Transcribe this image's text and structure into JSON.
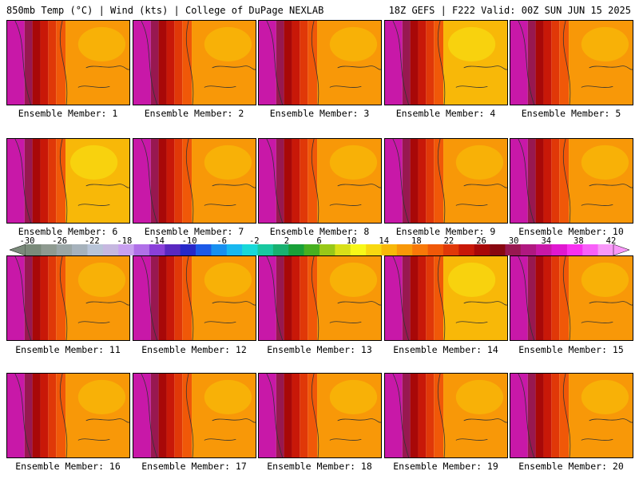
{
  "header": {
    "left_title": "850mb Temp (°C) | Wind (kts) | College of DuPage NEXLAB",
    "right_title": "18Z GEFS | F222 Valid: 00Z SUN JUN 15 2025"
  },
  "colorbar": {
    "tick_labels": [
      "-30",
      "-26",
      "-22",
      "-18",
      "-14",
      "-10",
      "-6",
      "-2",
      "2",
      "6",
      "10",
      "14",
      "18",
      "22",
      "26",
      "30",
      "34",
      "38",
      "42"
    ],
    "colors": [
      "#7a8a7a",
      "#8e9a90",
      "#9aa6a6",
      "#a6b2bc",
      "#b8c4d8",
      "#c6b8e0",
      "#c8a0f0",
      "#b070e8",
      "#8a40d8",
      "#5a28c0",
      "#2828c8",
      "#1c5ae8",
      "#1890f0",
      "#18b8f0",
      "#18d8d8",
      "#18c8a0",
      "#18b070",
      "#18a038",
      "#48b020",
      "#98c818",
      "#d8e018",
      "#f8f818",
      "#f8d810",
      "#f8b808",
      "#f89808",
      "#f87808",
      "#f05808",
      "#e03808",
      "#c81808",
      "#a80808",
      "#880810",
      "#981850",
      "#b01880",
      "#c818a8",
      "#e018d0",
      "#f830f0",
      "#f860f8",
      "#f898f8"
    ]
  },
  "members": [
    {
      "label": "Ensemble Member: 1",
      "style": "hot"
    },
    {
      "label": "Ensemble Member: 2",
      "style": "hot"
    },
    {
      "label": "Ensemble Member: 3",
      "style": "hot"
    },
    {
      "label": "Ensemble Member: 4",
      "style": "warm"
    },
    {
      "label": "Ensemble Member: 5",
      "style": "hot"
    },
    {
      "label": "Ensemble Member: 6",
      "style": "warm"
    },
    {
      "label": "Ensemble Member: 7",
      "style": "hot"
    },
    {
      "label": "Ensemble Member: 8",
      "style": "hot"
    },
    {
      "label": "Ensemble Member: 9",
      "style": "hot"
    },
    {
      "label": "Ensemble Member: 10",
      "style": "hot"
    },
    {
      "label": "Ensemble Member: 11",
      "style": "hot"
    },
    {
      "label": "Ensemble Member: 12",
      "style": "hot"
    },
    {
      "label": "Ensemble Member: 13",
      "style": "hot"
    },
    {
      "label": "Ensemble Member: 14",
      "style": "warm"
    },
    {
      "label": "Ensemble Member: 15",
      "style": "hot"
    },
    {
      "label": "Ensemble Member: 16",
      "style": "hot"
    },
    {
      "label": "Ensemble Member: 17",
      "style": "hot"
    },
    {
      "label": "Ensemble Member: 18",
      "style": "hot"
    },
    {
      "label": "Ensemble Member: 19",
      "style": "hot"
    },
    {
      "label": "Ensemble Member: 20",
      "style": "hot"
    }
  ]
}
